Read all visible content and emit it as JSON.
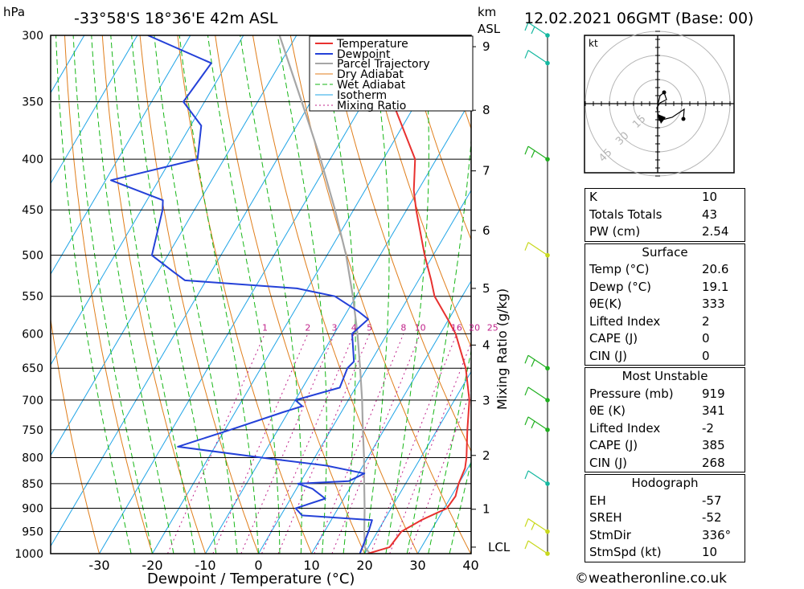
{
  "header": {
    "location": "-33°58'S  18°36'E  42m  ASL",
    "datetime": "12.02.2021  06GMT  (Base: 00)",
    "pressure_unit": "hPa",
    "height_unit_km": "km",
    "height_unit_asl": "ASL"
  },
  "chart_data": {
    "type": "skew-t",
    "xlabel": "Dewpoint / Temperature (°C)",
    "ylabel_right": "Mixing Ratio (g/kg)",
    "x_ticks": [
      -30,
      -20,
      -10,
      0,
      10,
      20,
      30,
      40
    ],
    "p_ticks": [
      300,
      350,
      400,
      450,
      500,
      550,
      600,
      650,
      700,
      750,
      800,
      850,
      900,
      950,
      1000
    ],
    "km_ticks": [
      {
        "label": "1",
        "p": 902
      },
      {
        "label": "2",
        "p": 796
      },
      {
        "label": "3",
        "p": 701
      },
      {
        "label": "4",
        "p": 616
      },
      {
        "label": "5",
        "p": 540
      },
      {
        "label": "6",
        "p": 472
      },
      {
        "label": "7",
        "p": 411
      },
      {
        "label": "8",
        "p": 357
      },
      {
        "label": "9",
        "p": 308
      }
    ],
    "lcl_label": "LCL",
    "lcl_p": 985,
    "mixing_ratio_labels": [
      "1",
      "2",
      "3",
      "4",
      "5",
      "8",
      "10",
      "16",
      "20",
      "25"
    ],
    "legend": [
      "Temperature",
      "Dewpoint",
      "Parcel Trajectory",
      "Dry Adiabat",
      "Wet Adiabat",
      "Isotherm",
      "Mixing Ratio"
    ],
    "colors": {
      "temperature": "#e8312f",
      "dewpoint": "#2441d8",
      "parcel": "#a6a6a6",
      "dry_adiabat": "#e07e1b",
      "wet_adiabat": "#16b616",
      "isotherm": "#1fa4e6",
      "mixing_ratio": "#c0228a"
    },
    "temperature": [
      {
        "p": 1000,
        "t": 20.6
      },
      {
        "p": 985,
        "t": 24
      },
      {
        "p": 950,
        "t": 24.5
      },
      {
        "p": 925,
        "t": 27
      },
      {
        "p": 900,
        "t": 30.5
      },
      {
        "p": 875,
        "t": 30.8
      },
      {
        "p": 850,
        "t": 30
      },
      {
        "p": 820,
        "t": 29.5
      },
      {
        "p": 800,
        "t": 28.6
      },
      {
        "p": 750,
        "t": 25.7
      },
      {
        "p": 700,
        "t": 22.8
      },
      {
        "p": 650,
        "t": 18.6
      },
      {
        "p": 600,
        "t": 12.9
      },
      {
        "p": 580,
        "t": 9.8
      },
      {
        "p": 550,
        "t": 4.8
      },
      {
        "p": 530,
        "t": 2.4
      },
      {
        "p": 500,
        "t": -1.6
      },
      {
        "p": 450,
        "t": -8.2
      },
      {
        "p": 430,
        "t": -10.8
      },
      {
        "p": 400,
        "t": -14
      },
      {
        "p": 350,
        "t": -24.6
      },
      {
        "p": 320,
        "t": -30.9
      },
      {
        "p": 300,
        "t": -35.5
      }
    ],
    "dewpoint": [
      {
        "p": 1000,
        "t": 19.1
      },
      {
        "p": 950,
        "t": 18.3
      },
      {
        "p": 925,
        "t": 17.7
      },
      {
        "p": 915,
        "t": 4
      },
      {
        "p": 900,
        "t": 2
      },
      {
        "p": 880,
        "t": 6.5
      },
      {
        "p": 860,
        "t": 3
      },
      {
        "p": 850,
        "t": -0.3
      },
      {
        "p": 845,
        "t": 9
      },
      {
        "p": 830,
        "t": 11.1
      },
      {
        "p": 815,
        "t": 3
      },
      {
        "p": 800,
        "t": -10
      },
      {
        "p": 780,
        "t": -27
      },
      {
        "p": 750,
        "t": -19
      },
      {
        "p": 720,
        "t": -11
      },
      {
        "p": 710,
        "t": -8
      },
      {
        "p": 700,
        "t": -10
      },
      {
        "p": 680,
        "t": -3
      },
      {
        "p": 650,
        "t": -3.7
      },
      {
        "p": 640,
        "t": -3.2
      },
      {
        "p": 600,
        "t": -6.6
      },
      {
        "p": 580,
        "t": -5.2
      },
      {
        "p": 570,
        "t": -7.8
      },
      {
        "p": 550,
        "t": -14
      },
      {
        "p": 540,
        "t": -22
      },
      {
        "p": 530,
        "t": -44
      },
      {
        "p": 520,
        "t": -47
      },
      {
        "p": 500,
        "t": -53
      },
      {
        "p": 450,
        "t": -56
      },
      {
        "p": 440,
        "t": -57
      },
      {
        "p": 420,
        "t": -69
      },
      {
        "p": 400,
        "t": -55
      },
      {
        "p": 370,
        "t": -58
      },
      {
        "p": 350,
        "t": -64
      },
      {
        "p": 320,
        "t": -63
      },
      {
        "p": 300,
        "t": -78
      }
    ],
    "parcel": [
      {
        "p": 1000,
        "t": 21
      },
      {
        "p": 985,
        "t": 19.3
      },
      {
        "p": 950,
        "t": 17.5
      },
      {
        "p": 900,
        "t": 15
      },
      {
        "p": 850,
        "t": 12.2
      },
      {
        "p": 800,
        "t": 9.3
      },
      {
        "p": 750,
        "t": 6
      },
      {
        "p": 700,
        "t": 2.6
      },
      {
        "p": 650,
        "t": -1.3
      },
      {
        "p": 600,
        "t": -5.6
      },
      {
        "p": 550,
        "t": -10.6
      },
      {
        "p": 500,
        "t": -16.4
      },
      {
        "p": 450,
        "t": -23.5
      },
      {
        "p": 400,
        "t": -31.8
      },
      {
        "p": 350,
        "t": -41.7
      },
      {
        "p": 300,
        "t": -53.2
      }
    ],
    "wind_barbs_p": [
      300,
      320,
      400,
      500,
      650,
      700,
      750,
      850,
      950,
      1000
    ],
    "hodograph": {
      "unit": "kt",
      "ring_labels": [
        "15",
        "30",
        "45"
      ]
    }
  },
  "indices": {
    "k": {
      "label": "K",
      "value": "10"
    },
    "tt": {
      "label": "Totals Totals",
      "value": "43"
    },
    "pw": {
      "label": "PW (cm)",
      "value": "2.54"
    }
  },
  "surface": {
    "title": "Surface",
    "rows": [
      {
        "label": "Temp (°C)",
        "value": "20.6"
      },
      {
        "label": "Dewp (°C)",
        "value": "19.1"
      },
      {
        "label": "θE(K)",
        "value": "333"
      },
      {
        "label": "Lifted Index",
        "value": "2"
      },
      {
        "label": "CAPE (J)",
        "value": "0"
      },
      {
        "label": "CIN (J)",
        "value": "0"
      }
    ]
  },
  "most_unstable": {
    "title": "Most Unstable",
    "rows": [
      {
        "label": "Pressure (mb)",
        "value": "919"
      },
      {
        "label": "θE (K)",
        "value": "341"
      },
      {
        "label": "Lifted Index",
        "value": "-2"
      },
      {
        "label": "CAPE (J)",
        "value": "385"
      },
      {
        "label": "CIN (J)",
        "value": "268"
      }
    ]
  },
  "hodograph_table": {
    "title": "Hodograph",
    "rows": [
      {
        "label": "EH",
        "value": "-57"
      },
      {
        "label": "SREH",
        "value": "-52"
      },
      {
        "label": "StmDir",
        "value": "336°"
      },
      {
        "label": "StmSpd (kt)",
        "value": "10"
      }
    ]
  },
  "credit": "©weatheronline.co.uk"
}
